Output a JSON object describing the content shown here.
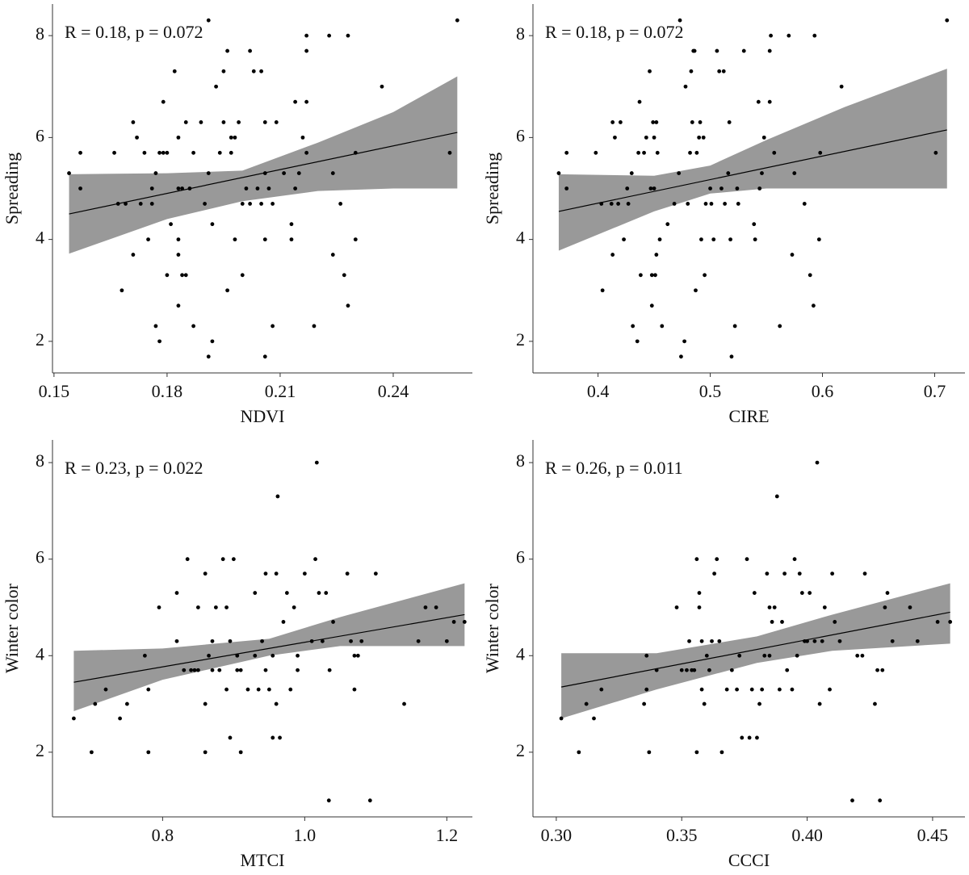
{
  "chart_data": [
    {
      "type": "scatter",
      "annotation": "R = 0.18, p = 0.072",
      "xlabel": "NDVI",
      "ylabel": "Spreading",
      "xlim": [
        0.1496,
        0.261
      ],
      "ylim": [
        1.38,
        8.62
      ],
      "xticks": [
        0.15,
        0.18,
        0.21,
        0.24
      ],
      "yticks": [
        2,
        4,
        6,
        8
      ],
      "color": "#000000",
      "band_color": "#999999",
      "line_color": "#000000",
      "x": [
        0.154,
        0.157,
        0.157,
        0.166,
        0.167,
        0.168,
        0.169,
        0.171,
        0.171,
        0.172,
        0.173,
        0.174,
        0.175,
        0.176,
        0.176,
        0.177,
        0.177,
        0.178,
        0.178,
        0.179,
        0.179,
        0.18,
        0.18,
        0.181,
        0.182,
        0.183,
        0.183,
        0.183,
        0.183,
        0.183,
        0.184,
        0.184,
        0.185,
        0.185,
        0.186,
        0.187,
        0.187,
        0.189,
        0.19,
        0.191,
        0.191,
        0.191,
        0.192,
        0.192,
        0.193,
        0.194,
        0.195,
        0.195,
        0.196,
        0.196,
        0.197,
        0.197,
        0.198,
        0.198,
        0.199,
        0.2,
        0.2,
        0.201,
        0.202,
        0.202,
        0.203,
        0.204,
        0.205,
        0.205,
        0.206,
        0.206,
        0.206,
        0.206,
        0.207,
        0.208,
        0.208,
        0.209,
        0.211,
        0.213,
        0.213,
        0.214,
        0.214,
        0.215,
        0.216,
        0.217,
        0.217,
        0.217,
        0.217,
        0.219,
        0.223,
        0.224,
        0.224,
        0.226,
        0.227,
        0.228,
        0.228,
        0.23,
        0.23,
        0.237,
        0.255,
        0.257
      ],
      "values": [
        5.3,
        5.7,
        5.0,
        5.7,
        4.7,
        3.0,
        4.7,
        6.3,
        3.7,
        6.0,
        4.7,
        5.7,
        4.0,
        5.0,
        4.7,
        5.3,
        2.3,
        5.7,
        2.0,
        6.7,
        5.7,
        5.7,
        3.3,
        4.3,
        7.3,
        6.0,
        5.0,
        4.0,
        3.7,
        2.7,
        5.0,
        3.3,
        6.3,
        3.3,
        5.0,
        5.7,
        2.3,
        6.3,
        4.7,
        8.3,
        5.3,
        1.7,
        2.0,
        4.3,
        7.0,
        5.7,
        7.3,
        6.3,
        7.7,
        3.0,
        5.7,
        6.0,
        4.0,
        6.0,
        6.3,
        3.3,
        4.7,
        5.0,
        7.7,
        4.7,
        7.3,
        5.0,
        7.3,
        4.7,
        6.3,
        5.3,
        4.0,
        1.7,
        5.0,
        2.3,
        4.7,
        6.3,
        5.3,
        4.3,
        4.0,
        6.7,
        5.0,
        5.3,
        6.0,
        8.0,
        6.7,
        5.7,
        7.7,
        2.3,
        8.0,
        5.3,
        3.7,
        4.7,
        3.3,
        8.0,
        2.7,
        5.7,
        4.0,
        7.0,
        5.7,
        8.3
      ],
      "fit": {
        "x": [
          0.154,
          0.257
        ],
        "values": [
          4.5,
          6.1
        ]
      },
      "band": {
        "x": [
          0.154,
          0.18,
          0.2,
          0.22,
          0.24,
          0.257
        ],
        "lower": [
          3.72,
          4.4,
          4.75,
          4.95,
          5.0,
          5.0
        ],
        "upper": [
          5.28,
          5.3,
          5.35,
          5.9,
          6.5,
          7.2
        ]
      }
    },
    {
      "type": "scatter",
      "annotation": "R = 0.18, p = 0.072",
      "xlabel": "CIRE",
      "ylabel": "Spreading",
      "xlim": [
        0.342,
        0.727
      ],
      "ylim": [
        1.38,
        8.62
      ],
      "xticks": [
        0.4,
        0.5,
        0.6,
        0.7
      ],
      "yticks": [
        2,
        4,
        6,
        8
      ],
      "color": "#000000",
      "band_color": "#999999",
      "line_color": "#000000",
      "x": [
        0.365,
        0.372,
        0.372,
        0.398,
        0.403,
        0.404,
        0.412,
        0.413,
        0.413,
        0.415,
        0.418,
        0.42,
        0.423,
        0.426,
        0.427,
        0.43,
        0.431,
        0.435,
        0.436,
        0.437,
        0.438,
        0.441,
        0.443,
        0.446,
        0.447,
        0.448,
        0.448,
        0.449,
        0.45,
        0.45,
        0.451,
        0.452,
        0.452,
        0.453,
        0.455,
        0.457,
        0.462,
        0.468,
        0.472,
        0.473,
        0.474,
        0.477,
        0.478,
        0.48,
        0.482,
        0.483,
        0.484,
        0.485,
        0.486,
        0.487,
        0.488,
        0.49,
        0.491,
        0.492,
        0.494,
        0.495,
        0.496,
        0.5,
        0.501,
        0.503,
        0.506,
        0.508,
        0.51,
        0.512,
        0.513,
        0.516,
        0.517,
        0.518,
        0.519,
        0.522,
        0.524,
        0.525,
        0.53,
        0.539,
        0.54,
        0.543,
        0.544,
        0.546,
        0.548,
        0.553,
        0.553,
        0.554,
        0.557,
        0.562,
        0.57,
        0.573,
        0.575,
        0.584,
        0.589,
        0.592,
        0.593,
        0.597,
        0.598,
        0.617,
        0.701,
        0.711
      ],
      "values": [
        5.3,
        5.0,
        5.7,
        5.7,
        4.7,
        3.0,
        4.7,
        3.7,
        6.3,
        6.0,
        4.7,
        6.3,
        4.0,
        5.0,
        4.7,
        5.3,
        2.3,
        2.0,
        5.7,
        6.7,
        3.3,
        5.7,
        6.0,
        7.3,
        5.0,
        3.3,
        2.7,
        6.3,
        6.0,
        5.0,
        3.3,
        3.7,
        6.3,
        5.7,
        4.0,
        2.3,
        4.3,
        4.7,
        5.3,
        8.3,
        1.7,
        2.0,
        7.0,
        4.7,
        5.7,
        7.3,
        6.3,
        7.7,
        7.7,
        3.0,
        5.7,
        6.0,
        6.3,
        4.0,
        6.0,
        3.3,
        4.7,
        5.0,
        4.7,
        4.0,
        7.7,
        7.3,
        5.0,
        7.3,
        4.7,
        5.3,
        6.3,
        4.0,
        1.7,
        2.3,
        5.0,
        4.7,
        7.7,
        4.3,
        4.0,
        6.7,
        5.0,
        5.3,
        6.0,
        6.7,
        7.7,
        8.0,
        5.7,
        2.3,
        8.0,
        3.7,
        5.3,
        4.7,
        3.3,
        2.7,
        8.0,
        4.0,
        5.7,
        7.0,
        5.7,
        8.3
      ],
      "fit": {
        "x": [
          0.365,
          0.711
        ],
        "values": [
          4.55,
          6.15
        ]
      },
      "band": {
        "x": [
          0.365,
          0.45,
          0.5,
          0.55,
          0.62,
          0.711
        ],
        "lower": [
          3.78,
          4.55,
          4.9,
          5.0,
          5.0,
          5.0
        ],
        "upper": [
          5.28,
          5.25,
          5.45,
          5.95,
          6.6,
          7.35
        ]
      }
    },
    {
      "type": "scatter",
      "annotation": "R = 0.23, p = 0.022",
      "xlabel": "MTCI",
      "ylabel": "Winter color",
      "xlim": [
        0.645,
        1.236
      ],
      "ylim": [
        0.66,
        8.47
      ],
      "xticks": [
        0.8,
        {
          "value": 1.0,
          "label": "1.0"
        },
        1.2
      ],
      "yticks": [
        2,
        4,
        6,
        8
      ],
      "color": "#000000",
      "band_color": "#999999",
      "line_color": "#000000",
      "x": [
        0.675,
        0.7,
        0.705,
        0.72,
        0.74,
        0.75,
        0.775,
        0.78,
        0.78,
        0.795,
        0.82,
        0.82,
        0.83,
        0.835,
        0.84,
        0.845,
        0.85,
        0.85,
        0.86,
        0.86,
        0.86,
        0.865,
        0.87,
        0.87,
        0.875,
        0.88,
        0.885,
        0.89,
        0.89,
        0.895,
        0.895,
        0.9,
        0.905,
        0.905,
        0.91,
        0.91,
        0.92,
        0.93,
        0.93,
        0.935,
        0.94,
        0.945,
        0.945,
        0.95,
        0.955,
        0.955,
        0.96,
        0.96,
        0.965,
        0.962,
        0.97,
        0.975,
        0.98,
        0.985,
        0.99,
        0.99,
        1.0,
        1.01,
        1.015,
        1.02,
        1.025,
        1.03,
        1.017,
        1.035,
        1.04,
        1.034,
        1.06,
        1.065,
        1.07,
        1.07,
        1.075,
        1.08,
        1.1,
        1.092,
        1.14,
        1.16,
        1.17,
        1.185,
        1.2,
        1.21,
        1.225
      ],
      "values": [
        2.7,
        2.0,
        3.0,
        3.3,
        2.7,
        3.0,
        4.0,
        3.3,
        2.0,
        5.0,
        4.3,
        5.3,
        3.7,
        6.0,
        3.7,
        3.7,
        5.0,
        3.7,
        3.0,
        5.7,
        2.0,
        4.0,
        3.7,
        4.3,
        5.0,
        3.7,
        6.0,
        3.3,
        5.0,
        2.3,
        4.3,
        6.0,
        3.7,
        4.0,
        2.0,
        3.7,
        3.3,
        4.0,
        5.3,
        3.3,
        4.3,
        5.7,
        3.7,
        3.3,
        4.0,
        2.3,
        5.7,
        3.0,
        2.3,
        7.3,
        4.7,
        5.3,
        3.3,
        5.0,
        4.0,
        3.7,
        5.7,
        4.3,
        6.0,
        5.3,
        4.3,
        5.3,
        8.0,
        3.7,
        4.7,
        1.0,
        5.7,
        4.3,
        3.3,
        4.0,
        4.0,
        4.3,
        5.7,
        1.0,
        3.0,
        4.3,
        5.0,
        5.0,
        4.3,
        4.7,
        4.7
      ],
      "fit": {
        "x": [
          0.675,
          1.225
        ],
        "values": [
          3.45,
          4.85
        ]
      },
      "band": {
        "x": [
          0.675,
          0.8,
          0.95,
          1.05,
          1.225
        ],
        "lower": [
          2.85,
          3.5,
          4.0,
          4.2,
          4.2
        ],
        "upper": [
          4.1,
          4.15,
          4.35,
          4.8,
          5.5
        ]
      }
    },
    {
      "type": "scatter",
      "annotation": "R = 0.26, p = 0.011",
      "xlabel": "CCCI",
      "ylabel": "Winter color",
      "xlim": [
        0.2907,
        0.4629
      ],
      "ylim": [
        0.66,
        8.47
      ],
      "xticks": [
        {
          "value": 0.3,
          "label": "0.30"
        },
        0.35,
        {
          "value": 0.4,
          "label": "0.40"
        },
        0.45
      ],
      "yticks": [
        2,
        4,
        6,
        8
      ],
      "color": "#000000",
      "band_color": "#999999",
      "line_color": "#000000",
      "x": [
        0.302,
        0.309,
        0.312,
        0.315,
        0.318,
        0.335,
        0.336,
        0.336,
        0.337,
        0.34,
        0.348,
        0.35,
        0.352,
        0.353,
        0.354,
        0.355,
        0.356,
        0.356,
        0.357,
        0.357,
        0.358,
        0.358,
        0.359,
        0.36,
        0.361,
        0.362,
        0.363,
        0.364,
        0.365,
        0.366,
        0.368,
        0.37,
        0.372,
        0.373,
        0.374,
        0.376,
        0.377,
        0.378,
        0.379,
        0.38,
        0.381,
        0.382,
        0.383,
        0.384,
        0.385,
        0.385,
        0.386,
        0.387,
        0.388,
        0.389,
        0.39,
        0.391,
        0.392,
        0.394,
        0.395,
        0.396,
        0.397,
        0.398,
        0.399,
        0.4,
        0.401,
        0.403,
        0.404,
        0.405,
        0.406,
        0.407,
        0.409,
        0.41,
        0.411,
        0.413,
        0.418,
        0.42,
        0.422,
        0.423,
        0.427,
        0.428,
        0.429,
        0.43,
        0.431,
        0.432,
        0.434,
        0.441,
        0.444,
        0.452,
        0.457
      ],
      "values": [
        2.7,
        2.0,
        3.0,
        2.7,
        3.3,
        3.0,
        4.0,
        3.3,
        2.0,
        3.7,
        5.0,
        3.7,
        3.7,
        4.3,
        3.7,
        3.7,
        6.0,
        2.0,
        5.3,
        5.0,
        3.3,
        4.3,
        3.0,
        4.0,
        3.7,
        4.3,
        5.7,
        6.0,
        4.3,
        2.0,
        3.3,
        3.7,
        3.3,
        4.0,
        2.3,
        6.0,
        2.3,
        3.3,
        5.3,
        2.3,
        3.0,
        3.3,
        4.0,
        5.7,
        4.0,
        5.0,
        4.7,
        5.0,
        7.3,
        3.3,
        4.7,
        5.7,
        3.7,
        3.3,
        6.0,
        4.0,
        5.7,
        5.3,
        4.3,
        4.3,
        5.3,
        4.3,
        8.0,
        3.0,
        4.3,
        5.0,
        3.3,
        5.7,
        4.7,
        4.3,
        1.0,
        4.0,
        4.0,
        5.7,
        3.0,
        3.7,
        1.0,
        3.7,
        5.0,
        5.3,
        4.3,
        5.0,
        4.3,
        4.7,
        4.7
      ],
      "fit": {
        "x": [
          0.302,
          0.457
        ],
        "values": [
          3.35,
          4.9
        ]
      },
      "band": {
        "x": [
          0.302,
          0.34,
          0.38,
          0.41,
          0.457
        ],
        "lower": [
          2.7,
          3.3,
          3.85,
          4.1,
          4.25
        ],
        "upper": [
          4.05,
          4.05,
          4.4,
          4.85,
          5.5
        ]
      }
    }
  ]
}
